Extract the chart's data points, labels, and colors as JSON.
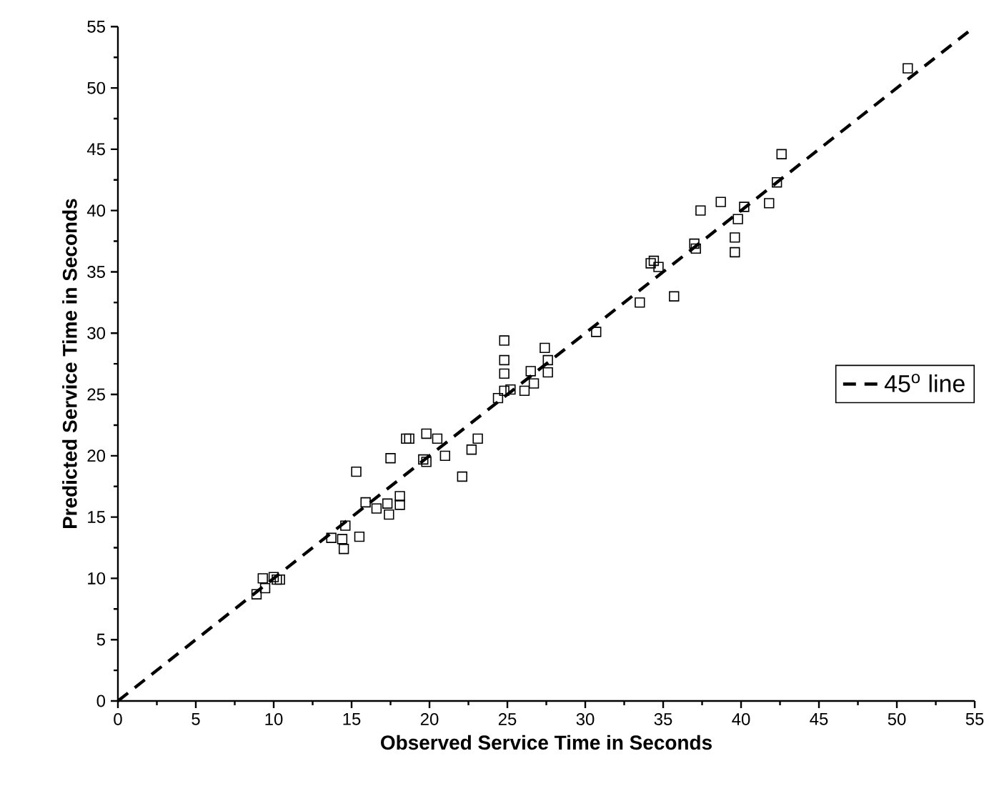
{
  "chart_data": {
    "type": "scatter",
    "xlabel": "Observed Service Time in Seconds",
    "ylabel": "Predicted Service Time in Seconds",
    "xlim": [
      0,
      55
    ],
    "ylim": [
      0,
      55
    ],
    "xticks": [
      0,
      5,
      10,
      15,
      20,
      25,
      30,
      35,
      40,
      45,
      50,
      55
    ],
    "yticks": [
      0,
      5,
      10,
      15,
      20,
      25,
      30,
      35,
      40,
      45,
      50,
      55
    ],
    "legend": "right",
    "series": [
      {
        "color": "#000000",
        "marker": "square",
        "x": [
          8.9,
          9.45,
          9.3,
          10.0,
          10.2,
          10.4,
          13.7,
          14.4,
          14.6,
          15.5,
          14.5,
          15.3,
          15.9,
          16.6,
          17.3,
          17.4,
          18.1,
          18.1,
          17.5,
          18.5,
          18.7,
          19.8,
          20.5,
          19.6,
          19.8,
          21.0,
          22.1,
          22.7,
          23.1,
          24.8,
          24.8,
          24.8,
          24.4,
          24.8,
          25.2,
          26.1,
          26.5,
          26.7,
          27.4,
          27.6,
          27.6,
          30.7,
          33.5,
          34.2,
          34.4,
          34.7,
          35.7,
          37.0,
          37.1,
          37.4,
          38.7,
          39.6,
          39.6,
          39.8,
          40.2,
          41.8,
          42.3,
          42.6,
          50.7
        ],
        "values": [
          8.7,
          9.2,
          10.0,
          10.1,
          9.9,
          9.9,
          13.3,
          13.2,
          14.3,
          13.4,
          12.4,
          18.7,
          16.2,
          15.7,
          16.1,
          15.2,
          16.7,
          16.0,
          19.8,
          21.4,
          21.4,
          21.8,
          21.4,
          19.7,
          19.5,
          20.0,
          18.3,
          20.5,
          21.4,
          29.4,
          27.8,
          26.7,
          24.7,
          25.3,
          25.4,
          25.3,
          26.9,
          25.9,
          28.8,
          27.8,
          26.8,
          30.1,
          32.5,
          35.7,
          35.9,
          35.4,
          33.0,
          37.3,
          36.9,
          40.0,
          40.7,
          37.8,
          36.6,
          39.3,
          40.3,
          40.6,
          42.3,
          44.6,
          51.6
        ]
      },
      {
        "type": "line",
        "name": "45$^{o}$ line",
        "color": "#000000",
        "line_style": "dashed",
        "x": [
          0,
          55
        ],
        "values": [
          0,
          55
        ]
      }
    ]
  }
}
